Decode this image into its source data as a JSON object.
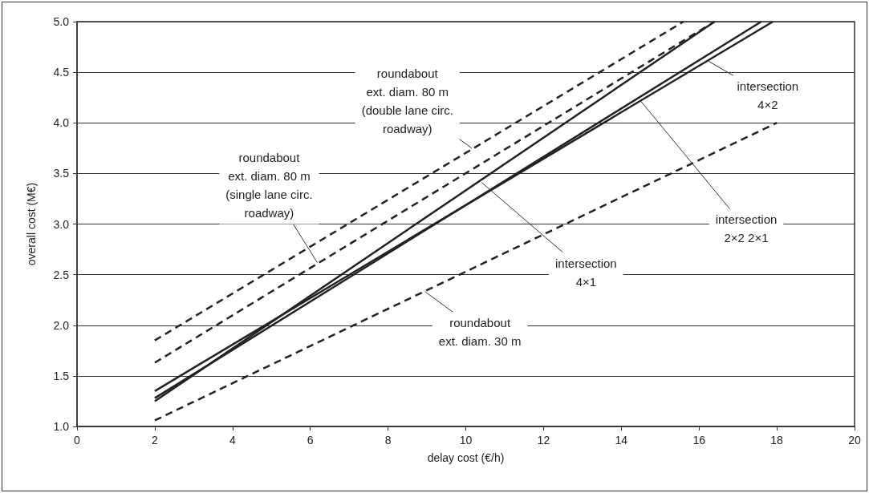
{
  "chart_data": {
    "type": "line",
    "xlabel": "delay cost (€/h)",
    "ylabel": "overall cost (M€)",
    "xlim": [
      0,
      20
    ],
    "xticks": [
      0,
      2,
      4,
      6,
      8,
      10,
      12,
      14,
      16,
      18,
      20
    ],
    "ylim": [
      1,
      5
    ],
    "yticks": [
      {
        "value": 1,
        "label": "1.0"
      },
      {
        "value": 1.5,
        "label": "1.5"
      },
      {
        "value": 2,
        "label": "2.0"
      },
      {
        "value": 2.5,
        "label": "2.5"
      },
      {
        "value": 3,
        "label": "3.0"
      },
      {
        "value": 3.5,
        "label": "3.5"
      },
      {
        "value": 4,
        "label": "4.0"
      },
      {
        "value": 4.5,
        "label": "4.5"
      },
      {
        "value": 5,
        "label": "5.0"
      }
    ],
    "grid": "y",
    "marker": "none",
    "series": [
      {
        "color": "#222222",
        "line_style": "dashed",
        "x": [
          2,
          15.6
        ],
        "values": [
          1.85,
          5.0
        ]
      },
      {
        "color": "#222222",
        "line_style": "dashed",
        "x": [
          2,
          16.4
        ],
        "values": [
          1.63,
          5.0
        ]
      },
      {
        "color": "#222222",
        "line_style": "solid",
        "x": [
          2,
          16.4
        ],
        "values": [
          1.25,
          5.0
        ]
      },
      {
        "color": "#222222",
        "line_style": "solid",
        "x": [
          2,
          17.9
        ],
        "values": [
          1.35,
          5.0
        ]
      },
      {
        "color": "#222222",
        "line_style": "solid",
        "x": [
          2,
          17.6
        ],
        "values": [
          1.28,
          5.0
        ]
      },
      {
        "color": "#222222",
        "line_style": "dashed",
        "x": [
          2,
          18
        ],
        "values": [
          1.06,
          4.0
        ]
      }
    ],
    "annotations": [
      {
        "text": "roundabout\next. diam. 80 m\n(double lane circ.\nroadway)",
        "x": 10.15,
        "y": 3.75
      },
      {
        "text": "roundabout\next. diam. 80 m\n(single lane circ.\nroadway)",
        "x": 6.18,
        "y": 2.62
      },
      {
        "text": "intersection\n4×1",
        "x": 10.41,
        "y": 3.41
      },
      {
        "text": "intersection\n4×2",
        "x": 16.24,
        "y": 4.61
      },
      {
        "text": "intersection\n2×2 2×1",
        "x": 14.49,
        "y": 4.22
      },
      {
        "text": "roundabout\next. diam. 30 m",
        "x": 8.96,
        "y": 2.33
      }
    ]
  }
}
